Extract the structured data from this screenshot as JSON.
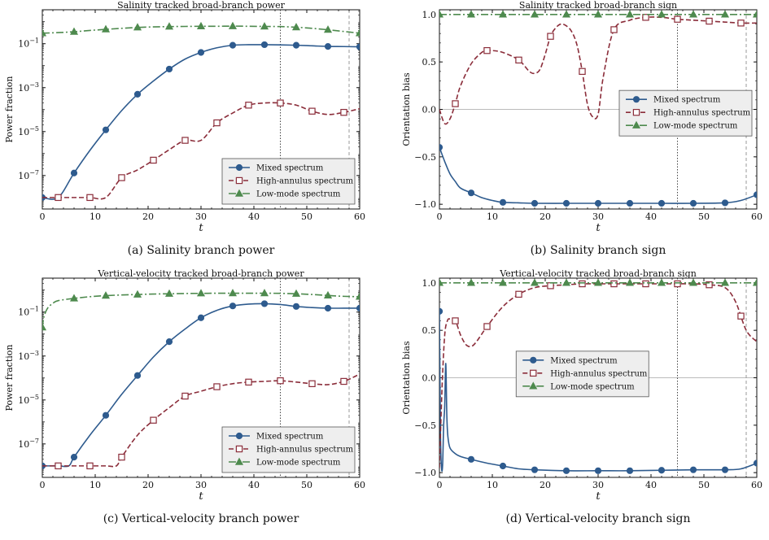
{
  "legend_labels": [
    "Mixed spectrum",
    "High-annulus spectrum",
    "Low-mode spectrum"
  ],
  "colors": {
    "mixed": "#2e5b8e",
    "high": "#8b2d3a",
    "low": "#4e8a4e"
  },
  "chart_data": [
    {
      "type": "line",
      "title": "Salinity tracked broad-branch power",
      "caption": "(a) Salinity branch power",
      "xlabel": "t",
      "ylabel": "Power fraction",
      "yscale": "log",
      "xlim": [
        0,
        60
      ],
      "ylim": [
        3e-09,
        3.5
      ],
      "xticks": [
        0,
        10,
        20,
        30,
        40,
        50,
        60
      ],
      "yticks": [
        1e-07,
        1e-05,
        0.001,
        0.1
      ],
      "ytick_labels": [
        "10^-7",
        "10^-5",
        "10^-3",
        "10^-1"
      ],
      "vlines": [
        {
          "x": 45,
          "style": "dotted"
        },
        {
          "x": 58,
          "style": "dashed"
        }
      ],
      "legend": "lower-right",
      "series": [
        {
          "name": "Mixed spectrum",
          "x": [
            0,
            3,
            6,
            9,
            12,
            15,
            18,
            21,
            24,
            27,
            30,
            33,
            36,
            39,
            42,
            45,
            48,
            51,
            54,
            57,
            60
          ],
          "y": [
            1e-08,
            1e-08,
            1.3e-07,
            1.4e-06,
            1.2e-05,
            9e-05,
            0.0005,
            0.002,
            0.007,
            0.02,
            0.04,
            0.065,
            0.085,
            0.09,
            0.09,
            0.088,
            0.085,
            0.08,
            0.075,
            0.074,
            0.072
          ]
        },
        {
          "name": "High-annulus spectrum",
          "x": [
            0,
            3,
            6,
            9,
            12,
            15,
            18,
            21,
            24,
            27,
            30,
            33,
            36,
            39,
            42,
            45,
            48,
            51,
            54,
            57,
            60
          ],
          "y": [
            1e-08,
            1e-08,
            1e-08,
            1e-08,
            1e-08,
            8e-08,
            1.8e-07,
            5e-07,
            1.5e-06,
            4e-06,
            4e-06,
            2.5e-05,
            7e-05,
            0.00016,
            0.0002,
            0.0002,
            0.00016,
            8.5e-05,
            6e-05,
            7.5e-05,
            0.00011
          ]
        },
        {
          "name": "Low-mode spectrum",
          "x": [
            0,
            3,
            6,
            9,
            12,
            15,
            18,
            21,
            24,
            27,
            30,
            33,
            36,
            39,
            42,
            45,
            48,
            51,
            54,
            57,
            60
          ],
          "y": [
            0.3,
            0.32,
            0.35,
            0.4,
            0.45,
            0.5,
            0.55,
            0.58,
            0.6,
            0.61,
            0.62,
            0.62,
            0.63,
            0.62,
            0.61,
            0.6,
            0.56,
            0.5,
            0.43,
            0.36,
            0.3
          ]
        }
      ]
    },
    {
      "type": "line",
      "title": "Salinity tracked broad-branch sign",
      "caption": "(b) Salinity branch sign",
      "xlabel": "t",
      "ylabel": "Orientation bias",
      "yscale": "linear",
      "xlim": [
        0,
        60
      ],
      "ylim": [
        -1.05,
        1.05
      ],
      "xticks": [
        0,
        10,
        20,
        30,
        40,
        50,
        60
      ],
      "yticks": [
        -1.0,
        -0.5,
        0.0,
        0.5,
        1.0
      ],
      "ytick_labels": [
        "−1.0",
        "−0.5",
        "0.0",
        "0.5",
        "1.0"
      ],
      "hline": 0,
      "vlines": [
        {
          "x": 45,
          "style": "dotted"
        },
        {
          "x": 58,
          "style": "dashed"
        }
      ],
      "legend": "center-right",
      "series": [
        {
          "name": "Mixed spectrum",
          "x": [
            0,
            1,
            2,
            3,
            4,
            6,
            8,
            10,
            12,
            15,
            18,
            24,
            30,
            36,
            42,
            48,
            54,
            57,
            60
          ],
          "y": [
            -0.4,
            -0.55,
            -0.68,
            -0.76,
            -0.83,
            -0.88,
            -0.93,
            -0.96,
            -0.98,
            -0.985,
            -0.99,
            -0.99,
            -0.99,
            -0.99,
            -0.99,
            -0.99,
            -0.985,
            -0.96,
            -0.9
          ]
        },
        {
          "name": "High-annulus spectrum",
          "x": [
            0,
            1,
            2,
            3,
            4,
            6,
            8,
            9,
            10,
            12,
            15,
            17,
            18,
            19,
            20,
            21,
            22,
            23,
            24,
            25,
            26,
            27,
            28,
            29,
            30,
            31,
            33,
            36,
            39,
            42,
            45,
            48,
            51,
            54,
            57,
            60
          ],
          "y": [
            0.0,
            -0.15,
            -0.1,
            0.06,
            0.25,
            0.48,
            0.6,
            0.62,
            0.62,
            0.6,
            0.52,
            0.4,
            0.38,
            0.42,
            0.58,
            0.77,
            0.86,
            0.9,
            0.88,
            0.82,
            0.68,
            0.4,
            0.05,
            -0.08,
            -0.05,
            0.35,
            0.84,
            0.94,
            0.97,
            0.97,
            0.95,
            0.94,
            0.93,
            0.92,
            0.91,
            0.91
          ]
        },
        {
          "name": "Low-mode spectrum",
          "x": [
            0,
            3,
            6,
            9,
            12,
            15,
            18,
            21,
            24,
            27,
            30,
            33,
            36,
            39,
            42,
            45,
            48,
            51,
            54,
            57,
            60
          ],
          "y": [
            1.0,
            1.0,
            1.0,
            1.0,
            1.0,
            1.0,
            1.0,
            1.0,
            1.0,
            1.0,
            1.0,
            1.0,
            1.0,
            1.0,
            1.0,
            1.0,
            1.0,
            1.0,
            1.0,
            1.0,
            1.0
          ]
        }
      ]
    },
    {
      "type": "line",
      "title": "Vertical-velocity tracked broad-branch power",
      "caption": "(c) Vertical-velocity branch power",
      "xlabel": "t",
      "ylabel": "Power fraction",
      "yscale": "log",
      "xlim": [
        0,
        60
      ],
      "ylim": [
        3e-09,
        3.5
      ],
      "xticks": [
        0,
        10,
        20,
        30,
        40,
        50,
        60
      ],
      "yticks": [
        1e-07,
        1e-05,
        0.001,
        0.1
      ],
      "ytick_labels": [
        "10^-7",
        "10^-5",
        "10^-3",
        "10^-1"
      ],
      "vlines": [
        {
          "x": 45,
          "style": "dotted"
        },
        {
          "x": 58,
          "style": "dashed"
        }
      ],
      "legend": "lower-right",
      "series": [
        {
          "name": "Mixed spectrum",
          "x": [
            0,
            3,
            5,
            6,
            9,
            12,
            15,
            18,
            21,
            24,
            27,
            30,
            33,
            36,
            39,
            42,
            45,
            48,
            51,
            54,
            57,
            60
          ],
          "y": [
            1e-08,
            1e-08,
            1e-08,
            2.5e-08,
            2.5e-07,
            2e-06,
            1.8e-05,
            0.00013,
            0.0009,
            0.0045,
            0.017,
            0.055,
            0.12,
            0.19,
            0.23,
            0.24,
            0.22,
            0.18,
            0.16,
            0.15,
            0.15,
            0.15
          ]
        },
        {
          "name": "High-annulus spectrum",
          "x": [
            0,
            3,
            6,
            9,
            12,
            14,
            15,
            18,
            21,
            24,
            27,
            30,
            33,
            36,
            39,
            42,
            45,
            48,
            51,
            54,
            57,
            60
          ],
          "y": [
            1e-08,
            1e-08,
            1e-08,
            1e-08,
            1e-08,
            1e-08,
            2.5e-08,
            2.5e-07,
            1.2e-06,
            4.5e-06,
            1.5e-05,
            2.5e-05,
            4e-05,
            5.5e-05,
            6.5e-05,
            7e-05,
            7.5e-05,
            6.5e-05,
            5.5e-05,
            5e-05,
            7e-05,
            0.00015
          ]
        },
        {
          "name": "Low-mode spectrum",
          "x": [
            0,
            0.3,
            1,
            2,
            3,
            6,
            9,
            12,
            15,
            18,
            21,
            24,
            27,
            30,
            33,
            36,
            39,
            42,
            45,
            48,
            51,
            54,
            57,
            60
          ],
          "y": [
            0.02,
            0.06,
            0.15,
            0.25,
            0.33,
            0.42,
            0.5,
            0.56,
            0.6,
            0.63,
            0.66,
            0.68,
            0.7,
            0.71,
            0.72,
            0.72,
            0.72,
            0.72,
            0.71,
            0.68,
            0.63,
            0.57,
            0.52,
            0.5
          ]
        }
      ]
    },
    {
      "type": "line",
      "title": "Vertical-velocity tracked broad-branch sign",
      "caption": "(d) Vertical-velocity branch sign",
      "xlabel": "t",
      "ylabel": "Orientation bias",
      "yscale": "linear",
      "xlim": [
        0,
        60
      ],
      "ylim": [
        -1.05,
        1.05
      ],
      "xticks": [
        0,
        10,
        20,
        30,
        40,
        50,
        60
      ],
      "yticks": [
        -1.0,
        -0.5,
        0.0,
        0.5,
        1.0
      ],
      "ytick_labels": [
        "−1.0",
        "−0.5",
        "0.0",
        "0.5",
        "1.0"
      ],
      "hline": 0,
      "vlines": [
        {
          "x": 45,
          "style": "dotted"
        },
        {
          "x": 58,
          "style": "dashed"
        }
      ],
      "legend": "center",
      "series": [
        {
          "name": "Mixed spectrum",
          "x": [
            0,
            0.2,
            0.4,
            0.6,
            0.8,
            1.0,
            1.2,
            1.4,
            1.6,
            2,
            3,
            4,
            6,
            9,
            12,
            15,
            18,
            24,
            30,
            36,
            42,
            48,
            54,
            57,
            60
          ],
          "y": [
            0.7,
            -0.6,
            -0.95,
            -0.92,
            -0.5,
            -0.3,
            0.15,
            -0.4,
            -0.62,
            -0.74,
            -0.8,
            -0.83,
            -0.86,
            -0.9,
            -0.93,
            -0.96,
            -0.97,
            -0.98,
            -0.98,
            -0.98,
            -0.975,
            -0.97,
            -0.97,
            -0.96,
            -0.9
          ]
        },
        {
          "name": "High-annulus spectrum",
          "x": [
            0,
            0.5,
            1.0,
            1.5,
            2,
            3,
            4,
            5,
            6,
            7,
            9,
            12,
            15,
            18,
            21,
            24,
            27,
            30,
            33,
            36,
            39,
            42,
            45,
            48,
            51,
            54,
            56,
            58,
            60
          ],
          "y": [
            -0.95,
            -0.1,
            0.45,
            0.6,
            0.62,
            0.6,
            0.45,
            0.35,
            0.33,
            0.38,
            0.54,
            0.75,
            0.88,
            0.95,
            0.97,
            0.98,
            0.99,
            0.99,
            0.99,
            0.99,
            0.99,
            0.99,
            0.99,
            0.99,
            0.98,
            0.95,
            0.8,
            0.5,
            0.38
          ]
        },
        {
          "name": "Low-mode spectrum",
          "x": [
            0,
            3,
            6,
            9,
            12,
            15,
            18,
            21,
            24,
            27,
            30,
            33,
            36,
            39,
            42,
            45,
            48,
            51,
            54,
            57,
            60
          ],
          "y": [
            1.0,
            1.0,
            1.0,
            1.0,
            1.0,
            1.0,
            1.0,
            1.0,
            1.0,
            1.0,
            1.0,
            1.0,
            1.0,
            1.0,
            1.0,
            1.0,
            1.0,
            1.0,
            1.0,
            1.0,
            1.0
          ]
        }
      ]
    }
  ]
}
